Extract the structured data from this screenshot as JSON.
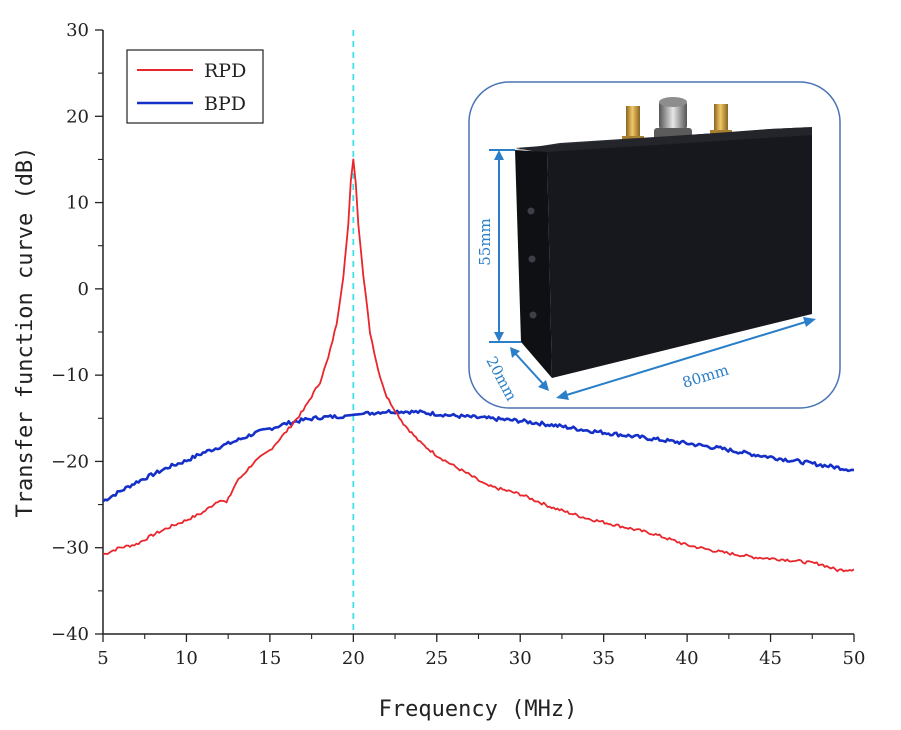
{
  "chart_data": {
    "type": "line",
    "xlabel": "Frequency (MHz)",
    "ylabel": "Transfer function curve (dB)",
    "xlim": [
      5,
      50
    ],
    "ylim": [
      -40,
      30
    ],
    "xticks": [
      5,
      10,
      15,
      20,
      25,
      30,
      35,
      40,
      45,
      50
    ],
    "yticks": [
      30,
      20,
      10,
      0,
      -10,
      -20,
      -30,
      -40
    ],
    "grid": false,
    "legend_position": "top-left",
    "reference_line": {
      "x": 20,
      "style": "dashed",
      "color": "#40e0e8"
    },
    "series": [
      {
        "name": "RPD",
        "color": "#e8262b",
        "x": [
          5,
          6,
          7,
          8,
          9,
          10,
          11,
          12,
          12.4,
          13,
          14,
          15,
          16,
          17,
          18,
          18.5,
          19,
          19.4,
          19.7,
          19.85,
          20,
          20.15,
          20.3,
          20.6,
          21,
          21.5,
          22,
          23,
          24,
          25,
          26,
          27,
          28,
          30,
          32,
          34,
          36,
          38,
          40,
          42,
          44,
          46,
          48,
          49,
          50
        ],
        "values": [
          -30.8,
          -30.0,
          -29.6,
          -28.5,
          -27.6,
          -26.8,
          -25.9,
          -24.4,
          -24.8,
          -22.4,
          -20.2,
          -18.7,
          -16.5,
          -14.1,
          -10.8,
          -8.0,
          -4.0,
          1.5,
          7.5,
          12.5,
          15.0,
          12.2,
          7.5,
          1.5,
          -5.0,
          -9.5,
          -12.5,
          -15.6,
          -17.8,
          -19.3,
          -20.5,
          -21.6,
          -22.8,
          -23.8,
          -25.4,
          -26.6,
          -27.5,
          -28.4,
          -29.7,
          -30.5,
          -31.1,
          -31.4,
          -31.9,
          -32.6,
          -32.5
        ]
      },
      {
        "name": "BPD",
        "color": "#1530c8",
        "x": [
          5,
          6,
          7,
          8,
          9,
          10,
          11,
          12,
          13,
          14,
          15,
          16,
          17,
          18,
          19,
          20,
          21,
          22,
          23,
          24,
          25,
          26,
          28,
          30,
          32,
          34,
          36,
          38,
          40,
          42,
          44,
          46,
          48,
          50
        ],
        "values": [
          -24.6,
          -23.5,
          -22.4,
          -21.5,
          -20.6,
          -19.9,
          -19.0,
          -18.3,
          -17.6,
          -16.8,
          -16.2,
          -15.6,
          -15.2,
          -14.9,
          -14.8,
          -14.6,
          -14.4,
          -14.2,
          -14.2,
          -14.3,
          -14.5,
          -14.7,
          -15.0,
          -15.3,
          -15.8,
          -16.4,
          -16.9,
          -17.4,
          -17.9,
          -18.5,
          -19.2,
          -19.8,
          -20.4,
          -21.0
        ]
      }
    ]
  },
  "inset": {
    "dimensions": {
      "height": "55mm",
      "depth": "20mm",
      "length": "80mm"
    },
    "colors": {
      "frame": "#4a74b4",
      "dimension": "#2a7fc8",
      "device_body": "#15171c",
      "connector_gold": "#c69a3a"
    }
  }
}
